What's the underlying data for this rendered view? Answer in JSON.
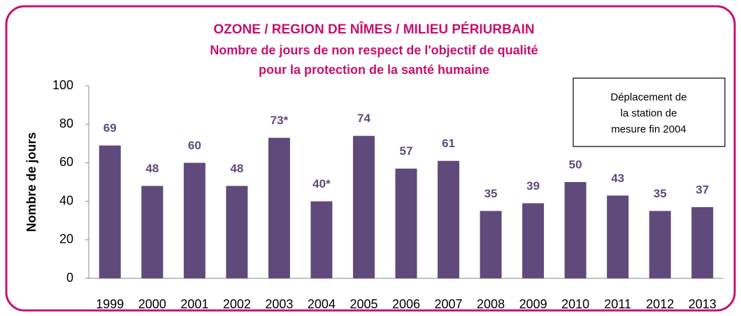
{
  "chart_data": {
    "type": "bar",
    "title": "OZONE / REGION DE NÎMES / MILIEU PÉRIURBAIN",
    "subtitle": [
      "Nombre de jours de non respect de l'objectif de qualité",
      "pour la protection de la santé humaine"
    ],
    "y_label": "Nombre de jours",
    "annotation": [
      "Déplacement de",
      "la station de",
      "mesure fin 2004"
    ],
    "categories": [
      "1999",
      "2000",
      "2001",
      "2002",
      "2003",
      "2004",
      "2005",
      "2006",
      "2007",
      "2008",
      "2009",
      "2010",
      "2011",
      "2012",
      "2013"
    ],
    "values": [
      69,
      48,
      60,
      48,
      73,
      40,
      74,
      57,
      61,
      35,
      39,
      50,
      43,
      35,
      37
    ],
    "value_labels": [
      "69",
      "48",
      "60",
      "48",
      "73*",
      "40*",
      "74",
      "57",
      "61",
      "35",
      "39",
      "50",
      "43",
      "35",
      "37"
    ],
    "color": "#604a7b",
    "ylim": [
      0,
      100
    ],
    "yticks": [
      0,
      20,
      40,
      60,
      80,
      100
    ],
    "grid": false
  }
}
